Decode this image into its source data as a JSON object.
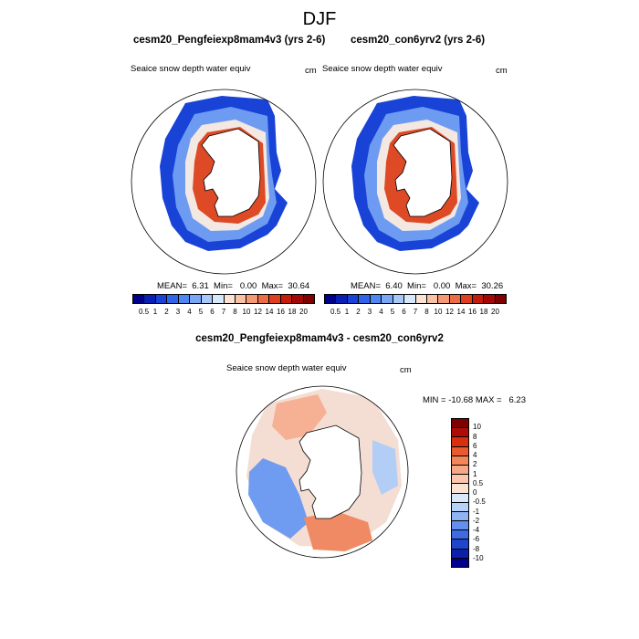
{
  "page": {
    "title": "DJF"
  },
  "panels": [
    {
      "case": "cesm20_Pengfeiexp8mam4v3 (yrs 2-6)",
      "variable": "Seaice snow depth water equiv",
      "units": "cm",
      "stats": "MEAN=  6.31  Min=   0.00  Max=  30.64"
    },
    {
      "case": "cesm20_con6yrv2 (yrs 2-6)",
      "variable": "Seaice snow depth water equiv",
      "units": "cm",
      "stats": "MEAN=  6.40  Min=   0.00  Max=  30.26"
    }
  ],
  "diff_panel": {
    "case": "cesm20_Pengfeiexp8mam4v3 - cesm20_con6yrv2",
    "variable": "Seaice snow depth water equiv",
    "units": "cm",
    "minmax": "MIN = -10.68 MAX =   6.23"
  },
  "colorbar": {
    "labels": [
      "0.5",
      "1",
      "2",
      "3",
      "4",
      "5",
      "6",
      "7",
      "8",
      "10",
      "12",
      "14",
      "16",
      "18",
      "20"
    ],
    "colors": [
      "#00008b",
      "#0a1fb4",
      "#1843d6",
      "#2f66e8",
      "#4f87f0",
      "#7aa6f4",
      "#a8c8f8",
      "#d8e8fb",
      "#fbe3d3",
      "#f8c2a4",
      "#f39a74",
      "#eb6c45",
      "#dd3f1f",
      "#c51d0b",
      "#a30805",
      "#7e0000"
    ]
  },
  "diff_colorbar": {
    "labels": [
      "10",
      "8",
      "6",
      "4",
      "2",
      "1",
      "0.5",
      "0",
      "-0.5",
      "-1",
      "-2",
      "-4",
      "-6",
      "-8",
      "-10"
    ],
    "colors": [
      "#7e0000",
      "#b00c05",
      "#d8300f",
      "#ea5a30",
      "#f28559",
      "#f6a886",
      "#f9c6ae",
      "#fbe3d4",
      "#d8e8fb",
      "#b7d2f8",
      "#8fb4f4",
      "#658fee",
      "#3f6ae2",
      "#1f45cd",
      "#0b22a8",
      "#00008b"
    ]
  }
}
